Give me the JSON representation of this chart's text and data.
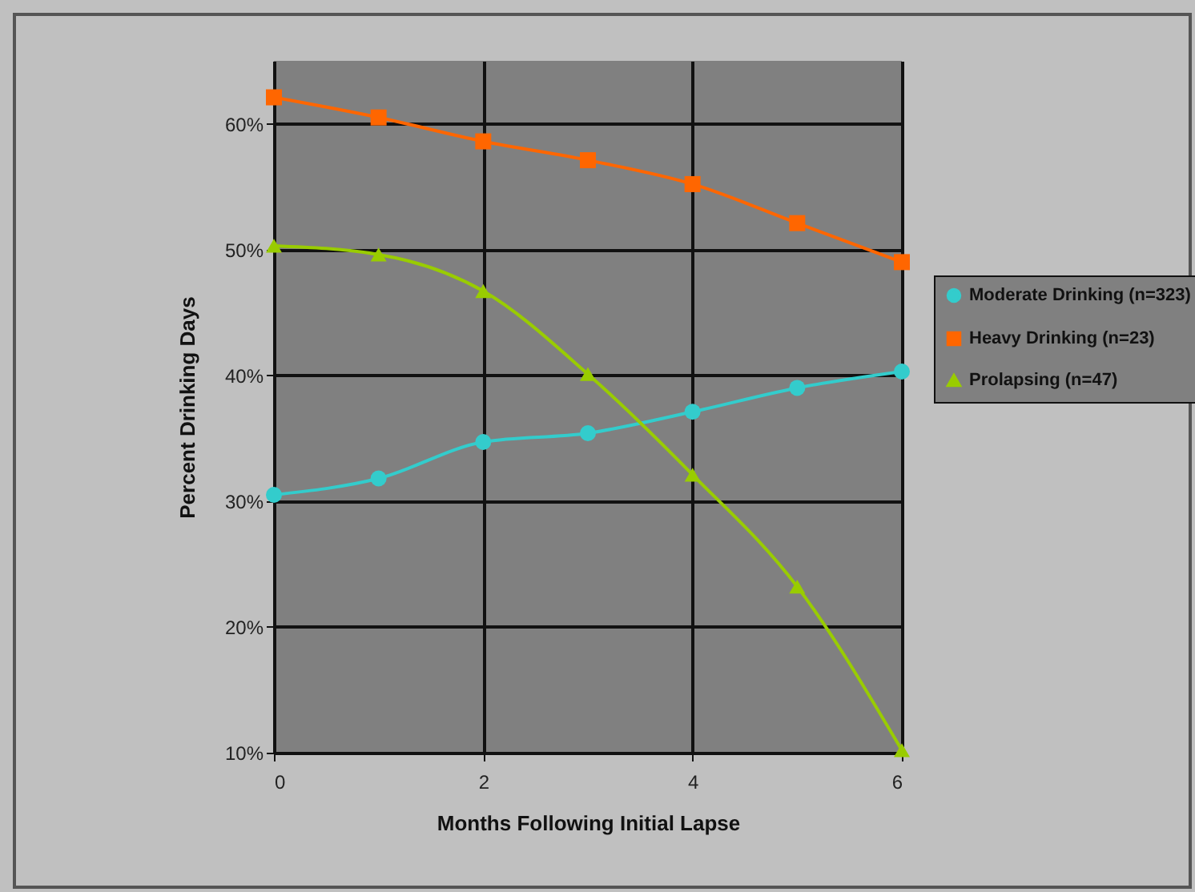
{
  "chart_data": {
    "type": "line",
    "xlabel": "Months Following Initial Lapse",
    "ylabel": "Percent Drinking Days",
    "x": [
      0,
      1,
      2,
      3,
      4,
      5,
      6
    ],
    "series": [
      {
        "name": "Moderate Drinking (n=323)",
        "color": "#33cccc",
        "marker": "circle",
        "values": [
          30.5,
          31.8,
          34.7,
          35.4,
          37.1,
          39.0,
          40.3
        ]
      },
      {
        "name": "Heavy Drinking (n=23)",
        "color": "#ff6600",
        "marker": "square",
        "values": [
          62.1,
          60.5,
          58.6,
          57.1,
          55.2,
          52.1,
          49.0
        ]
      },
      {
        "name": "Prolapsing (n=47)",
        "color": "#99cc00",
        "marker": "triangle",
        "values": [
          50.3,
          49.6,
          46.7,
          40.1,
          32.1,
          23.2,
          10.2
        ]
      }
    ],
    "xlim": [
      0,
      6
    ],
    "xticks": [
      0,
      2,
      4,
      6
    ],
    "ylim": [
      10,
      65
    ],
    "yticks": [
      {
        "value": 10,
        "label": "10%"
      },
      {
        "value": 20,
        "label": "20%"
      },
      {
        "value": 30,
        "label": "30%"
      },
      {
        "value": 40,
        "label": "40%"
      },
      {
        "value": 50,
        "label": "50%"
      },
      {
        "value": 60,
        "label": "60%"
      }
    ],
    "grid": true,
    "legend": "right",
    "line_style": "solid"
  }
}
